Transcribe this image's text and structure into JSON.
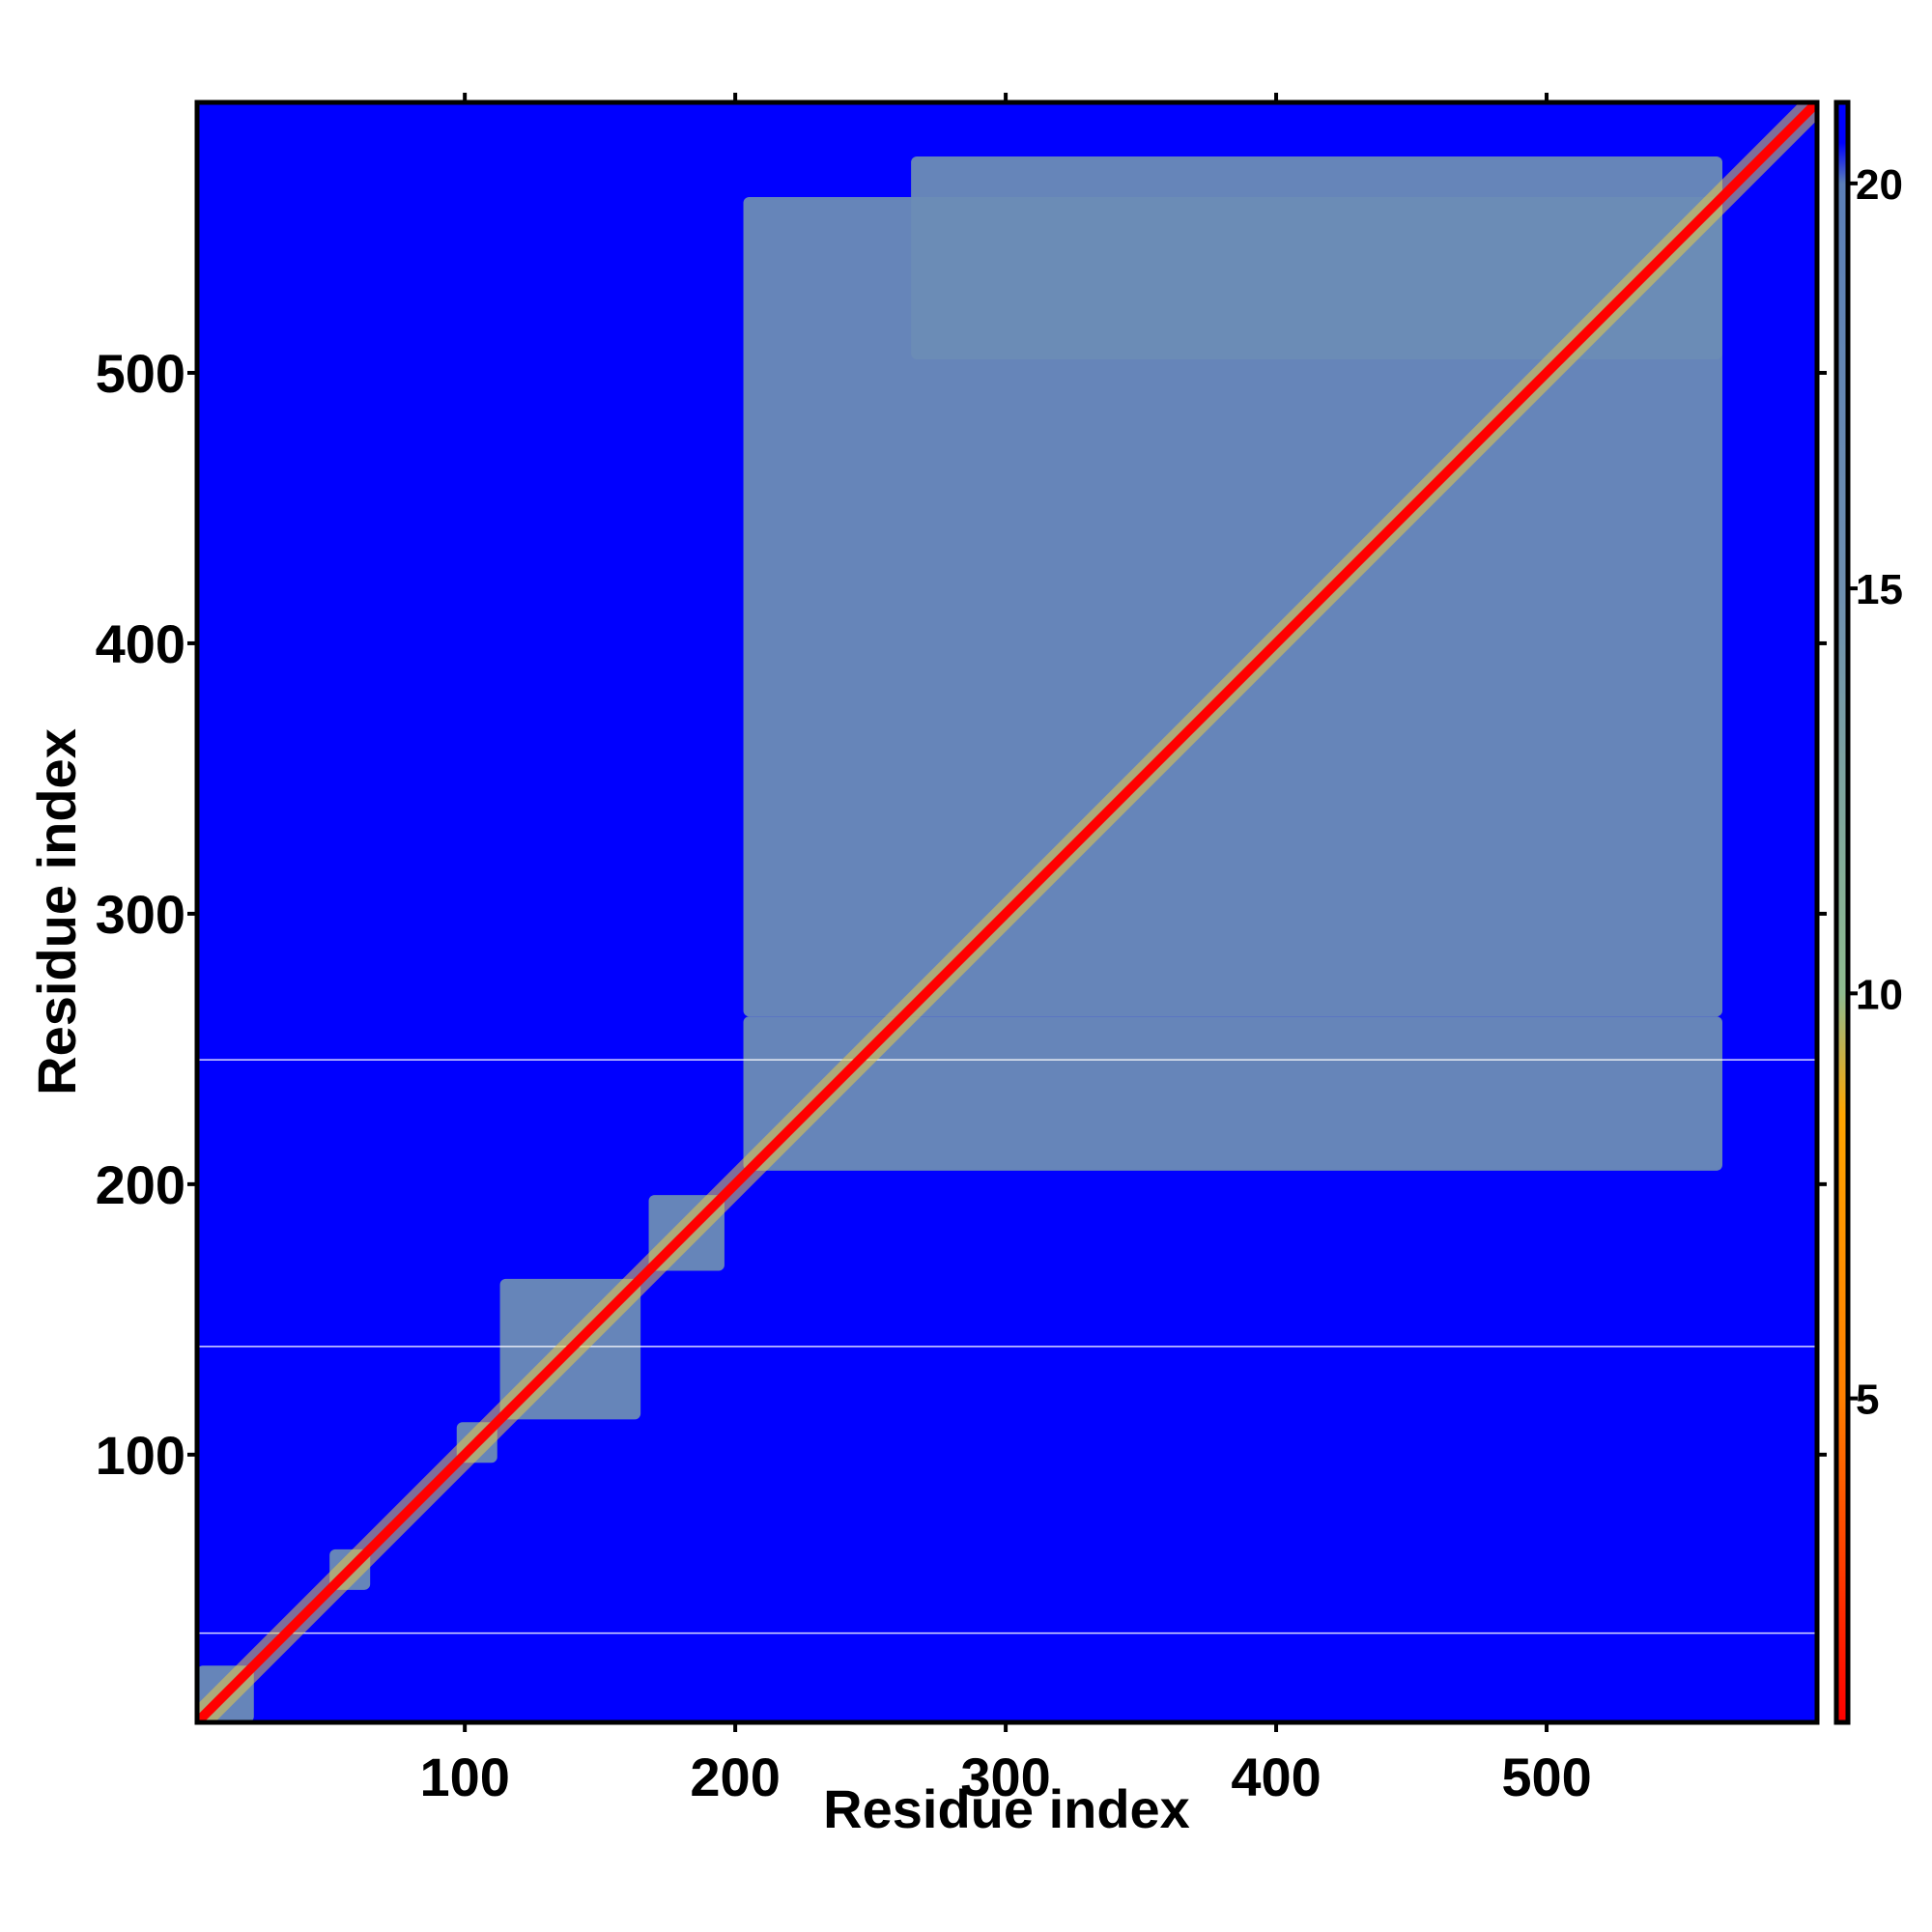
{
  "chart_data": {
    "type": "heatmap",
    "title": "",
    "xlabel": "Residue index",
    "ylabel": "Residue index",
    "xlim": [
      1,
      600
    ],
    "ylim": [
      1,
      600
    ],
    "x_ticks": [
      100,
      200,
      300,
      400,
      500
    ],
    "y_ticks": [
      100,
      200,
      300,
      400,
      500
    ],
    "x_tick_labels": [
      "100",
      "200",
      "300",
      "400",
      "500"
    ],
    "y_tick_labels": [
      "100",
      "200",
      "300",
      "400",
      "500"
    ],
    "colorbar": {
      "range": [
        1,
        21
      ],
      "ticks": [
        5,
        10,
        15,
        20
      ],
      "tick_labels": [
        "5",
        "10",
        "15",
        "20"
      ],
      "stops": [
        {
          "value": 1,
          "color": "#ff0000"
        },
        {
          "value": 5,
          "color": "#ff7f00"
        },
        {
          "value": 8.5,
          "color": "#ffa500"
        },
        {
          "value": 10,
          "color": "#8fbc8f"
        },
        {
          "value": 15,
          "color": "#6e8fb0"
        },
        {
          "value": 20,
          "color": "#5b7fb8"
        },
        {
          "value": 20.5,
          "color": "#0000ff"
        }
      ]
    },
    "background_color": "#0000ff",
    "contact_color": "#6b8cb5",
    "diagonal_color": "#ff0000",
    "domain_blocks": [
      {
        "x": [
          1,
          22
        ],
        "y": [
          1,
          22
        ]
      },
      {
        "x": [
          50,
          65
        ],
        "y": [
          50,
          65
        ]
      },
      {
        "x": [
          97,
          112
        ],
        "y": [
          97,
          112
        ]
      },
      {
        "x": [
          113,
          165
        ],
        "y": [
          113,
          165
        ]
      },
      {
        "x": [
          168,
          196
        ],
        "y": [
          168,
          196
        ]
      },
      {
        "x": [
          203,
          565
        ],
        "y": [
          205,
          262
        ]
      },
      {
        "x": [
          203,
          565
        ],
        "y": [
          262,
          565
        ]
      },
      {
        "x": [
          265,
          565
        ],
        "y": [
          505,
          580
        ]
      }
    ],
    "separator_lines_y": [
      34,
      140,
      246
    ]
  }
}
